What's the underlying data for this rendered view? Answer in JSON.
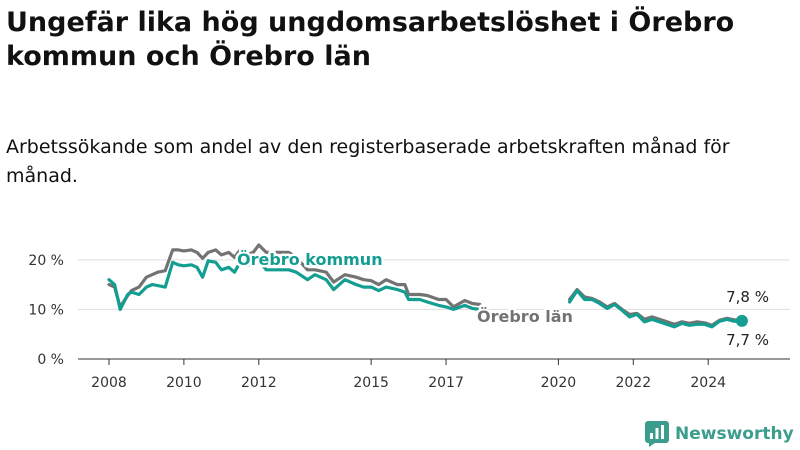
{
  "title": "Ungefär lika hög ungdomsarbetslöshet i Örebro kommun och Örebro län",
  "subtitle": "Arbetssökande som andel av den registerbaserade arbetskraften månad för månad.",
  "brand": {
    "name": "Newsworthy",
    "icon": "bar-chart-logo-icon"
  },
  "colors": {
    "kommun": "#139e91",
    "lan": "#737373",
    "grid": "#dddddd",
    "axis": "#333333"
  },
  "chart_data": {
    "type": "line",
    "title": "Ungefär lika hög ungdomsarbetslöshet i Örebro kommun och Örebro län",
    "subtitle": "Arbetssökande som andel av den registerbaserade arbetskraften månad för månad.",
    "xlabel": "",
    "ylabel": "",
    "xlim": [
      2007.2,
      2025.3
    ],
    "ylim": [
      0,
      24
    ],
    "grid": true,
    "legend": "inline labels",
    "y_ticks": [
      {
        "value": 0,
        "label": "0 %"
      },
      {
        "value": 10,
        "label": "10 %"
      },
      {
        "value": 20,
        "label": "20 %"
      }
    ],
    "x_ticks": [
      {
        "value": 2008,
        "label": "2008"
      },
      {
        "value": 2010,
        "label": "2010"
      },
      {
        "value": 2012,
        "label": "2012"
      },
      {
        "value": 2015,
        "label": "2015"
      },
      {
        "value": 2017,
        "label": "2017"
      },
      {
        "value": 2020,
        "label": "2020"
      },
      {
        "value": 2022,
        "label": "2022"
      },
      {
        "value": 2024,
        "label": "2024"
      }
    ],
    "series": [
      {
        "key": "lan",
        "name": "Örebro län",
        "color": "#737373",
        "end_label": "7,8 %",
        "x": [
          2008.0,
          2008.15,
          2008.3,
          2008.5,
          2008.6,
          2008.8,
          2009.0,
          2009.15,
          2009.3,
          2009.5,
          2009.7,
          2009.85,
          2010.0,
          2010.2,
          2010.35,
          2010.5,
          2010.65,
          2010.85,
          2011.0,
          2011.2,
          2011.35,
          2011.5,
          2011.65,
          2011.85,
          2012.0,
          2012.2,
          2012.5,
          2012.8,
          2013.0,
          2013.3,
          2013.5,
          2013.8,
          2014.0,
          2014.3,
          2014.6,
          2014.8,
          2015.0,
          2015.2,
          2015.4,
          2015.7,
          2015.9,
          2016.0,
          2016.3,
          2016.5,
          2016.8,
          2017.0,
          2017.2,
          2017.5,
          2017.7,
          2017.9
        ],
        "y": [
          15.0,
          14.5,
          10.5,
          12.8,
          13.8,
          14.5,
          16.5,
          17.0,
          17.5,
          17.8,
          22.0,
          22.0,
          21.8,
          22.0,
          21.5,
          20.3,
          21.5,
          22.0,
          21.0,
          21.5,
          20.5,
          22.0,
          21.0,
          21.5,
          23.0,
          21.5,
          21.5,
          21.5,
          20.5,
          18.0,
          18.0,
          17.5,
          15.5,
          17.0,
          16.5,
          16.0,
          15.8,
          15.0,
          16.0,
          15.0,
          15.0,
          13.0,
          13.0,
          12.8,
          12.0,
          12.0,
          10.5,
          11.8,
          11.2,
          11.0
        ]
      },
      {
        "key": "lan_b",
        "name": "",
        "color": "#737373",
        "x": [
          2020.3,
          2020.5,
          2020.7,
          2020.9,
          2021.1,
          2021.3,
          2021.5,
          2021.7,
          2021.9,
          2022.1,
          2022.3,
          2022.5,
          2022.7,
          2022.9,
          2023.1,
          2023.3,
          2023.5,
          2023.7,
          2023.9,
          2024.1,
          2024.3,
          2024.5,
          2024.7,
          2024.9
        ],
        "y": [
          12.0,
          14.0,
          12.5,
          12.2,
          11.5,
          10.5,
          11.2,
          10.0,
          9.0,
          9.2,
          8.0,
          8.5,
          8.0,
          7.5,
          7.0,
          7.5,
          7.2,
          7.5,
          7.3,
          6.8,
          7.8,
          8.2,
          7.9,
          7.8
        ]
      },
      {
        "key": "kommun",
        "name": "Örebro kommun",
        "color": "#139e91",
        "end_label": "7,7 %",
        "x": [
          2008.0,
          2008.15,
          2008.3,
          2008.5,
          2008.6,
          2008.8,
          2009.0,
          2009.15,
          2009.3,
          2009.5,
          2009.7,
          2009.85,
          2010.0,
          2010.2,
          2010.35,
          2010.5,
          2010.65,
          2010.85,
          2011.0,
          2011.2,
          2011.35,
          2011.5,
          2011.65,
          2011.85,
          2012.0,
          2012.2,
          2012.5,
          2012.8,
          2013.0,
          2013.3,
          2013.5,
          2013.8,
          2014.0,
          2014.3,
          2014.6,
          2014.8,
          2015.0,
          2015.2,
          2015.4,
          2015.7,
          2015.9,
          2016.0,
          2016.3,
          2016.5,
          2016.8,
          2017.0,
          2017.2,
          2017.5,
          2017.7,
          2017.9
        ],
        "y": [
          16.0,
          15.0,
          10.0,
          13.0,
          13.5,
          13.0,
          14.5,
          15.0,
          14.8,
          14.5,
          19.5,
          19.0,
          18.8,
          19.0,
          18.5,
          16.5,
          19.8,
          19.5,
          18.0,
          18.5,
          17.5,
          19.5,
          19.0,
          19.0,
          19.8,
          18.0,
          18.0,
          18.0,
          17.5,
          16.0,
          17.0,
          16.0,
          14.0,
          16.0,
          15.0,
          14.5,
          14.5,
          13.8,
          14.5,
          14.0,
          13.5,
          12.0,
          12.0,
          11.5,
          10.8,
          10.5,
          10.0,
          10.8,
          10.2,
          10.0
        ]
      },
      {
        "key": "kommun_b",
        "name": "",
        "color": "#139e91",
        "x": [
          2020.3,
          2020.5,
          2020.7,
          2020.9,
          2021.1,
          2021.3,
          2021.5,
          2021.7,
          2021.9,
          2022.1,
          2022.3,
          2022.5,
          2022.7,
          2022.9,
          2023.1,
          2023.3,
          2023.5,
          2023.7,
          2023.9,
          2024.1,
          2024.3,
          2024.5,
          2024.7,
          2024.9
        ],
        "y": [
          11.5,
          13.8,
          12.0,
          12.0,
          11.2,
          10.2,
          11.0,
          9.8,
          8.5,
          9.0,
          7.5,
          8.0,
          7.5,
          7.0,
          6.5,
          7.2,
          6.8,
          7.0,
          7.0,
          6.5,
          7.6,
          8.0,
          7.6,
          7.7
        ]
      }
    ]
  }
}
